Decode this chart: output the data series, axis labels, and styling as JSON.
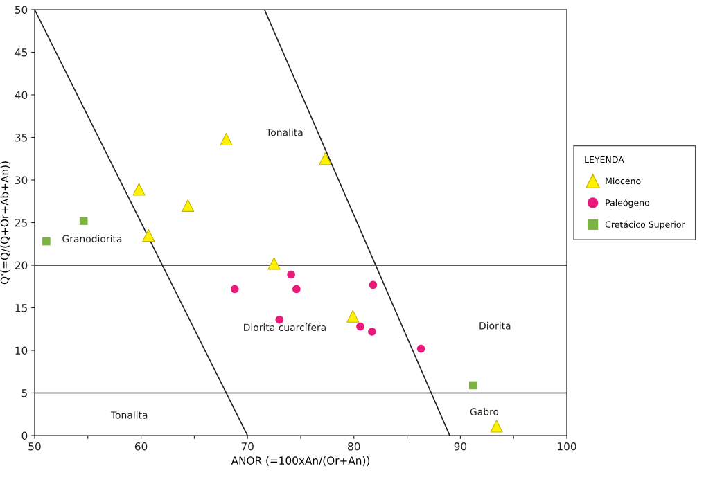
{
  "chart_data": {
    "type": "scatter",
    "xlabel": "ANOR (=100xAn/(Or+An))",
    "ylabel": "Q'(=Q/(Q+Or+Ab+An))",
    "legend_title": "LEYENDA",
    "xlim": [
      50,
      100
    ],
    "xticks": [
      50,
      {
        "value": 55,
        "label": null
      },
      60,
      {
        "value": 65,
        "label": null
      },
      70,
      {
        "value": 75,
        "label": null
      },
      80,
      {
        "value": 85,
        "label": null
      },
      90,
      {
        "value": 95,
        "label": null
      },
      100
    ],
    "ylim": [
      0,
      50
    ],
    "yticks": [
      0,
      5,
      10,
      15,
      20,
      25,
      30,
      35,
      40,
      45,
      50
    ],
    "grid": false,
    "legend": "right",
    "series": [
      {
        "type": "line",
        "color": "#231f20",
        "x": [
          50,
          70
        ],
        "values": [
          50,
          0
        ],
        "marker": "none"
      },
      {
        "type": "line",
        "color": "#231f20",
        "x": [
          71.6,
          89
        ],
        "values": [
          50,
          0
        ],
        "marker": "none"
      },
      {
        "name": "Mioceno",
        "color": "#fff200",
        "marker": "triangle",
        "x": [
          59.8,
          68.0,
          77.3,
          64.4,
          60.7,
          72.5,
          79.9,
          93.4
        ],
        "values": [
          28.9,
          34.8,
          32.5,
          27.0,
          23.5,
          20.2,
          14.0,
          1.1
        ]
      },
      {
        "name": "Paleógeno",
        "color": "#e8197a",
        "marker": "circle",
        "x": [
          68.8,
          74.1,
          74.6,
          81.8,
          73.0,
          80.6,
          81.7,
          86.3
        ],
        "values": [
          17.2,
          18.9,
          17.2,
          17.7,
          13.6,
          12.8,
          12.2,
          10.2
        ]
      },
      {
        "name": "Cretácico Superior",
        "color": "#7cb342",
        "marker": "square",
        "x": [
          54.6,
          51.1,
          91.2
        ],
        "values": [
          25.2,
          22.8,
          5.9
        ]
      }
    ],
    "ref_lines": [
      {
        "axis": "y",
        "value": 20,
        "color": "#231f20"
      },
      {
        "axis": "y",
        "value": 5,
        "color": "#231f20"
      }
    ],
    "annotations": [
      "Tonalita",
      "Granodiorita",
      "Diorita cuarcífera",
      "Diorita",
      "Tonalita",
      "Gabro"
    ]
  }
}
